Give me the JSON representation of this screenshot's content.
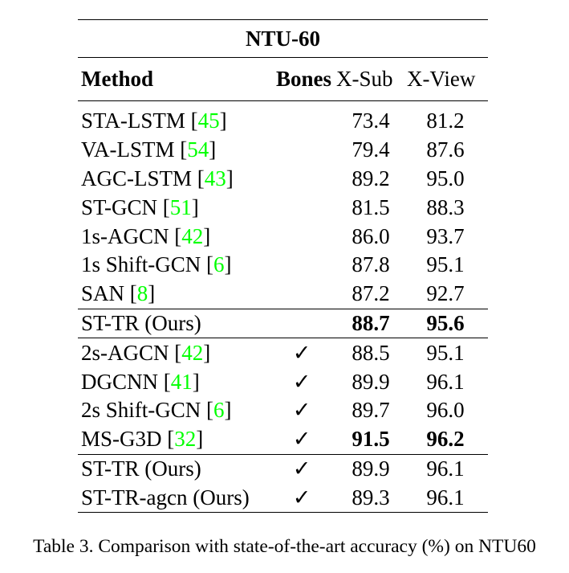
{
  "table": {
    "title": "NTU-60",
    "headers": {
      "method": "Method",
      "bones": "Bones",
      "xsub": "X-Sub",
      "xview": "X-View"
    },
    "groups": [
      {
        "rows": [
          {
            "method": "STA-LSTM [",
            "cite": "45",
            "close": "]",
            "bones": "",
            "xsub": "73.4",
            "xview": "81.2"
          },
          {
            "method": "VA-LSTM [",
            "cite": "54",
            "close": "]",
            "bones": "",
            "xsub": "79.4",
            "xview": "87.6"
          },
          {
            "method": "AGC-LSTM [",
            "cite": "43",
            "close": "]",
            "bones": "",
            "xsub": "89.2",
            "xview": "95.0"
          },
          {
            "method": "ST-GCN [",
            "cite": "51",
            "close": "]",
            "bones": "",
            "xsub": "81.5",
            "xview": "88.3"
          },
          {
            "method": "1s-AGCN [",
            "cite": "42",
            "close": "]",
            "bones": "",
            "xsub": "86.0",
            "xview": "93.7"
          },
          {
            "method": "1s Shift-GCN [",
            "cite": "6",
            "close": "]",
            "bones": "",
            "xsub": "87.8",
            "xview": "95.1"
          },
          {
            "method": "SAN [",
            "cite": "8",
            "close": "]",
            "bones": "",
            "xsub": "87.2",
            "xview": "92.7"
          }
        ]
      },
      {
        "rows": [
          {
            "method": "ST-TR (Ours)",
            "cite": "",
            "close": "",
            "bones": "",
            "xsub": "88.7",
            "xview": "95.6",
            "bold": true
          }
        ]
      },
      {
        "rows": [
          {
            "method": "2s-AGCN [",
            "cite": "42",
            "close": "]",
            "bones": "✓",
            "xsub": "88.5",
            "xview": "95.1"
          },
          {
            "method": "DGCNN [",
            "cite": "41",
            "close": "]",
            "bones": "✓",
            "xsub": "89.9",
            "xview": "96.1"
          },
          {
            "method": "2s Shift-GCN [",
            "cite": "6",
            "close": "]",
            "bones": "✓",
            "xsub": "89.7",
            "xview": "96.0"
          },
          {
            "method": "MS-G3D [",
            "cite": "32",
            "close": "]",
            "bones": "✓",
            "xsub": "91.5",
            "xview": "96.2",
            "bold": true
          }
        ]
      },
      {
        "rows": [
          {
            "method": "ST-TR (Ours)",
            "cite": "",
            "close": "",
            "bones": "✓",
            "xsub": "89.9",
            "xview": "96.1"
          },
          {
            "method": "ST-TR-agcn (Ours)",
            "cite": "",
            "close": "",
            "bones": "✓",
            "xsub": "89.3",
            "xview": "96.1"
          }
        ]
      }
    ]
  },
  "caption": "Table 3. Comparison with state-of-the-art accuracy (%) on NTU60",
  "colors": {
    "citation": "#00ff00",
    "text": "#000000",
    "background": "#ffffff"
  }
}
